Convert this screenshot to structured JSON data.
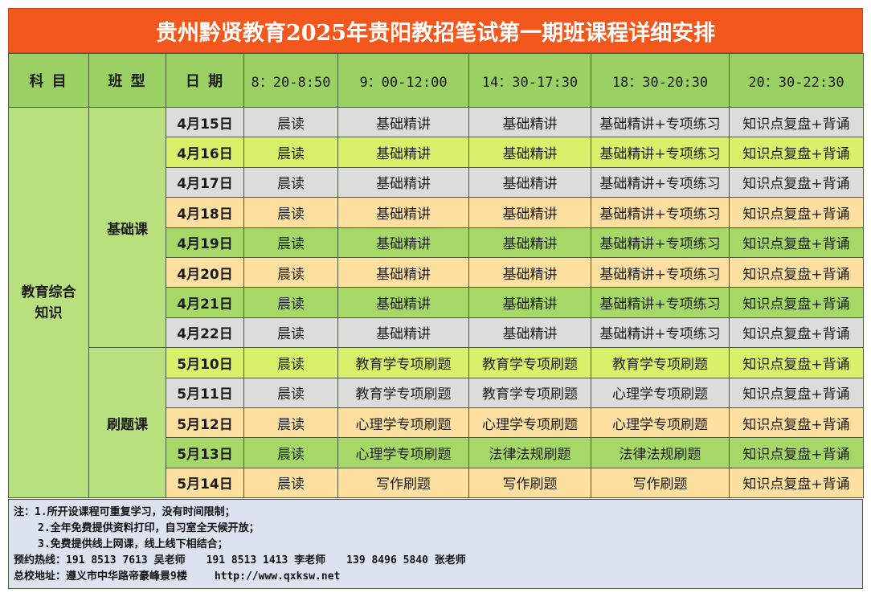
{
  "title": "贵州黔贤教育2025年贵阳教招笔试第一期班课程详细安排",
  "headers": {
    "subject": "科 目",
    "class_type": "班 型",
    "date": "日 期",
    "slots": [
      "8：20-8:50",
      "9：00-12:00",
      "14：30-17:30",
      "18：30-20:30",
      "20：30-22:30"
    ]
  },
  "subject": "教育综合知识",
  "groups": [
    {
      "class_type": "基础课",
      "rows": [
        {
          "date": "4月15日",
          "cells": [
            "晨读",
            "基础精讲",
            "基础精讲",
            "基础精讲+专项练习",
            "知识点复盘+背诵"
          ]
        },
        {
          "date": "4月16日",
          "cells": [
            "晨读",
            "基础精讲",
            "基础精讲",
            "基础精讲+专项练习",
            "知识点复盘+背诵"
          ]
        },
        {
          "date": "4月17日",
          "cells": [
            "晨读",
            "基础精讲",
            "基础精讲",
            "基础精讲+专项练习",
            "知识点复盘+背诵"
          ]
        },
        {
          "date": "4月18日",
          "cells": [
            "晨读",
            "基础精讲",
            "基础精讲",
            "基础精讲+专项练习",
            "知识点复盘+背诵"
          ]
        },
        {
          "date": "4月19日",
          "cells": [
            "晨读",
            "基础精讲",
            "基础精讲",
            "基础精讲+专项练习",
            "知识点复盘+背诵"
          ]
        },
        {
          "date": "4月20日",
          "cells": [
            "晨读",
            "基础精讲",
            "基础精讲",
            "基础精讲+专项练习",
            "知识点复盘+背诵"
          ]
        },
        {
          "date": "4月21日",
          "cells": [
            "晨读",
            "基础精讲",
            "基础精讲",
            "基础精讲+专项练习",
            "知识点复盘+背诵"
          ]
        },
        {
          "date": "4月22日",
          "cells": [
            "晨读",
            "基础精讲",
            "基础精讲",
            "基础精讲+专项练习",
            "知识点复盘+背诵"
          ]
        }
      ]
    },
    {
      "class_type": "刷题课",
      "rows": [
        {
          "date": "5月10日",
          "cells": [
            "晨读",
            "教育学专项刷题",
            "教育学专项刷题",
            "教育学专项刷题",
            "知识点复盘+背诵"
          ]
        },
        {
          "date": "5月11日",
          "cells": [
            "晨读",
            "教育学专项刷题",
            "教育学专项刷题",
            "心理学专项刷题",
            "知识点复盘+背诵"
          ]
        },
        {
          "date": "5月12日",
          "cells": [
            "晨读",
            "心理学专项刷题",
            "心理学专项刷题",
            "心理学专项刷题",
            "知识点复盘+背诵"
          ]
        },
        {
          "date": "5月13日",
          "cells": [
            "晨读",
            "心理学专项刷题",
            "法律法规刷题",
            "法律法规刷题",
            "知识点复盘+背诵"
          ]
        },
        {
          "date": "5月14日",
          "cells": [
            "晨读",
            "写作刷题",
            "写作刷题",
            "写作刷题",
            "知识点复盘+背诵"
          ]
        }
      ]
    }
  ],
  "row_colors": [
    "grey",
    "lime",
    "grey",
    "peach",
    "green",
    "peach",
    "green",
    "grey",
    "lime",
    "grey",
    "peach",
    "green",
    "peach"
  ],
  "colors": {
    "title_bg": "#f4571c",
    "header_bg": "#9bd164",
    "grey": "#dcdcdc",
    "lime": "#d9f06a",
    "peach": "#fde0a0",
    "green": "#a6d868",
    "notes_bg": "#dde2f1"
  },
  "notes": {
    "line1": "注：1.所开设课程可重复学习，没有时间限制；",
    "line2": "2.全年免费提供资料打印，自习室全天候开放；",
    "line3": "3.免费提供线上网课，线上线下相结合；",
    "hotline_label": "预约热线：",
    "contacts": [
      "191 8513 7613 吴老师",
      "191 8513 1413 李老师",
      "139 8496 5840 张老师"
    ],
    "address": "总校地址：遵义市中华路帝豪峰景9楼",
    "website": "http://www.qxksw.net"
  }
}
